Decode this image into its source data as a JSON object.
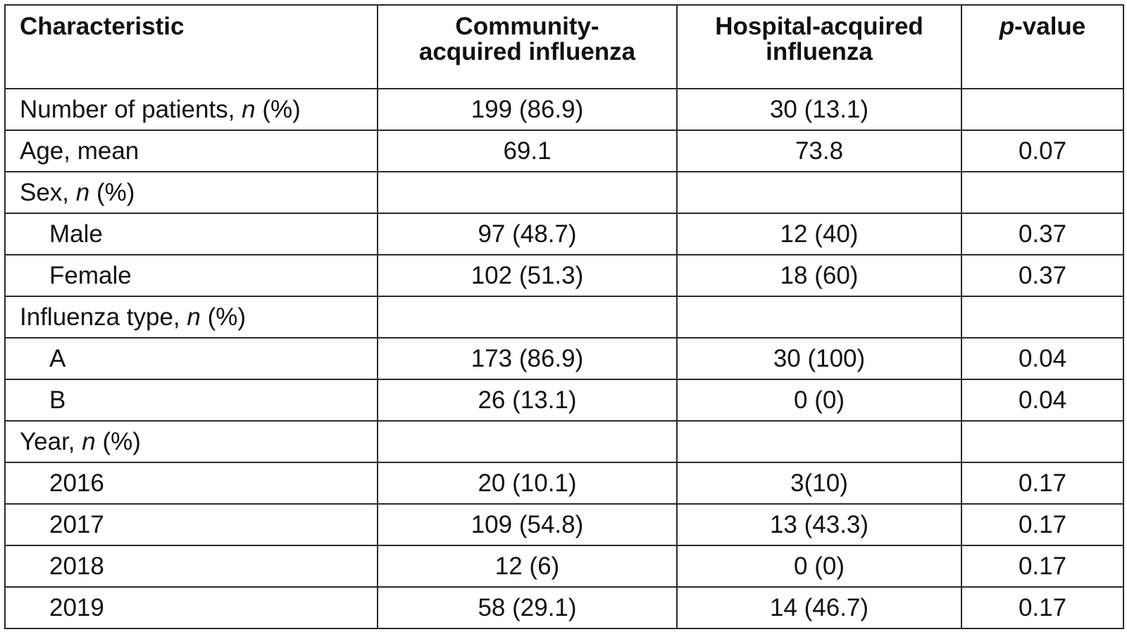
{
  "header": {
    "characteristic": "Characteristic",
    "community": "Community-\nacquired influenza",
    "community_line1": "Community-",
    "community_line2": "acquired influenza",
    "hospital_line1": "Hospital-acquired",
    "hospital_line2": "influenza",
    "pvalue_italic": "p",
    "pvalue_rest": "-value"
  },
  "rows": [
    {
      "label": "Number of patients, ",
      "italic": "n",
      "suffix": " (%)",
      "indent": false,
      "community": "199 (86.9)",
      "hospital": "30 (13.1)",
      "p": ""
    },
    {
      "label": "Age, mean",
      "italic": "",
      "suffix": "",
      "indent": false,
      "community": "69.1",
      "hospital": "73.8",
      "p": "0.07"
    },
    {
      "label": "Sex, ",
      "italic": "n",
      "suffix": " (%)",
      "indent": false,
      "community": "",
      "hospital": "",
      "p": ""
    },
    {
      "label": "Male",
      "italic": "",
      "suffix": "",
      "indent": true,
      "community": "97 (48.7)",
      "hospital": "12 (40)",
      "p": "0.37"
    },
    {
      "label": "Female",
      "italic": "",
      "suffix": "",
      "indent": true,
      "community": "102 (51.3)",
      "hospital": "18 (60)",
      "p": "0.37"
    },
    {
      "label": "Influenza type, ",
      "italic": "n",
      "suffix": " (%)",
      "indent": false,
      "community": "",
      "hospital": "",
      "p": ""
    },
    {
      "label": "A",
      "italic": "",
      "suffix": "",
      "indent": true,
      "community": "173 (86.9)",
      "hospital": "30 (100)",
      "p": "0.04"
    },
    {
      "label": "B",
      "italic": "",
      "suffix": "",
      "indent": true,
      "community": "26 (13.1)",
      "hospital": "0 (0)",
      "p": "0.04"
    },
    {
      "label": "Year, ",
      "italic": "n",
      "suffix": " (%)",
      "indent": false,
      "community": "",
      "hospital": "",
      "p": ""
    },
    {
      "label": "2016",
      "italic": "",
      "suffix": "",
      "indent": true,
      "community": "20 (10.1)",
      "hospital": "3(10)",
      "p": "0.17"
    },
    {
      "label": "2017",
      "italic": "",
      "suffix": "",
      "indent": true,
      "community": "109 (54.8)",
      "hospital": "13 (43.3)",
      "p": "0.17"
    },
    {
      "label": "2018",
      "italic": "",
      "suffix": "",
      "indent": true,
      "community": "12 (6)",
      "hospital": "0 (0)",
      "p": "0.17"
    },
    {
      "label": "2019",
      "italic": "",
      "suffix": "",
      "indent": true,
      "community": "58 (29.1)",
      "hospital": "14 (46.7)",
      "p": "0.17"
    }
  ]
}
